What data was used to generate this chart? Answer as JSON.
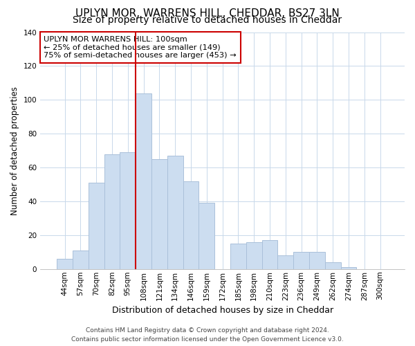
{
  "title": "UPLYN MOR, WARRENS HILL, CHEDDAR, BS27 3LN",
  "subtitle": "Size of property relative to detached houses in Cheddar",
  "xlabel": "Distribution of detached houses by size in Cheddar",
  "ylabel": "Number of detached properties",
  "bar_labels": [
    "44sqm",
    "57sqm",
    "70sqm",
    "82sqm",
    "95sqm",
    "108sqm",
    "121sqm",
    "134sqm",
    "146sqm",
    "159sqm",
    "172sqm",
    "185sqm",
    "198sqm",
    "210sqm",
    "223sqm",
    "236sqm",
    "249sqm",
    "262sqm",
    "274sqm",
    "287sqm",
    "300sqm"
  ],
  "bar_heights": [
    6,
    11,
    51,
    68,
    69,
    104,
    65,
    67,
    52,
    39,
    0,
    15,
    16,
    17,
    8,
    10,
    10,
    4,
    1,
    0,
    0
  ],
  "bar_color": "#ccddf0",
  "bar_edge_color": "#aac0da",
  "vline_color": "#cc0000",
  "vline_index": 5,
  "ylim": [
    0,
    140
  ],
  "yticks": [
    0,
    20,
    40,
    60,
    80,
    100,
    120,
    140
  ],
  "annotation_title": "UPLYN MOR WARRENS HILL: 100sqm",
  "annotation_line1": "← 25% of detached houses are smaller (149)",
  "annotation_line2": "75% of semi-detached houses are larger (453) →",
  "annotation_box_color": "#ffffff",
  "annotation_box_edge": "#cc0000",
  "footer1": "Contains HM Land Registry data © Crown copyright and database right 2024.",
  "footer2": "Contains public sector information licensed under the Open Government Licence v3.0.",
  "title_fontsize": 11,
  "subtitle_fontsize": 10,
  "xlabel_fontsize": 9,
  "ylabel_fontsize": 8.5,
  "tick_fontsize": 7.5,
  "footer_fontsize": 6.5,
  "annotation_fontsize": 8.2
}
